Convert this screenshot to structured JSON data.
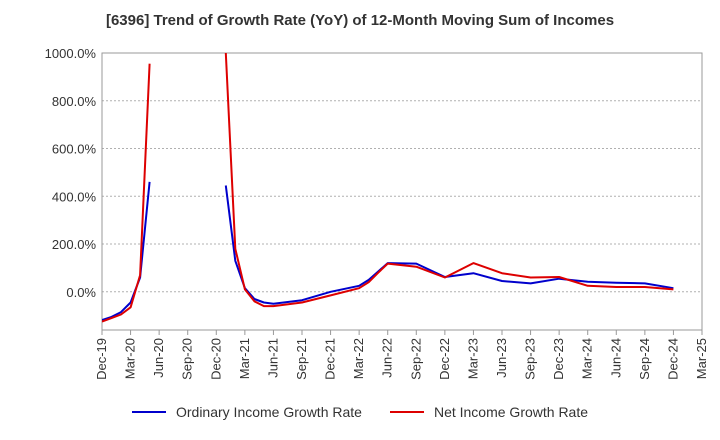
{
  "chart_data": {
    "type": "line",
    "title": "[6396]  Trend of Growth Rate (YoY) of 12-Month Moving Sum of Incomes",
    "xlabel": "",
    "ylabel": "",
    "x_ticks": [
      "Dec-19",
      "Mar-20",
      "Jun-20",
      "Sep-20",
      "Dec-20",
      "Mar-21",
      "Jun-21",
      "Sep-21",
      "Dec-21",
      "Mar-22",
      "Jun-22",
      "Sep-22",
      "Dec-22",
      "Mar-23",
      "Jun-23",
      "Sep-23",
      "Dec-23",
      "Mar-24",
      "Jun-24",
      "Sep-24",
      "Dec-24",
      "Mar-25"
    ],
    "y_ticks": [
      "0.0%",
      "200.0%",
      "400.0%",
      "600.0%",
      "800.0%",
      "1000.0%"
    ],
    "y_tick_values": [
      0,
      200,
      400,
      600,
      800,
      1000
    ],
    "ylim": [
      -160,
      1000
    ],
    "y_unit": "%",
    "grid": "horizontal dashed",
    "legend_position": "bottom",
    "series": [
      {
        "name": "Ordinary Income Growth Rate",
        "color": "#0000cc",
        "points": [
          [
            "Dec-19",
            -118
          ],
          [
            "Jan-20",
            -105
          ],
          [
            "Feb-20",
            -85
          ],
          [
            "Mar-20",
            -45
          ],
          [
            "Apr-20",
            60
          ],
          [
            "May-20",
            460
          ],
          null,
          [
            "Jan-21",
            445
          ],
          [
            "Feb-21",
            130
          ],
          [
            "Mar-21",
            15
          ],
          [
            "Apr-21",
            -30
          ],
          [
            "May-21",
            -45
          ],
          [
            "Jun-21",
            -50
          ],
          [
            "Sep-21",
            -35
          ],
          [
            "Dec-21",
            0
          ],
          [
            "Mar-22",
            25
          ],
          [
            "Apr-22",
            50
          ],
          [
            "May-22",
            85
          ],
          [
            "Jun-22",
            120
          ],
          [
            "Sep-22",
            118
          ],
          [
            "Dec-22",
            62
          ],
          [
            "Mar-23",
            78
          ],
          [
            "Jun-23",
            45
          ],
          [
            "Sep-23",
            35
          ],
          [
            "Dec-23",
            55
          ],
          [
            "Mar-24",
            42
          ],
          [
            "Jun-24",
            38
          ],
          [
            "Sep-24",
            35
          ],
          [
            "Dec-24",
            15
          ]
        ]
      },
      {
        "name": "Net Income Growth Rate",
        "color": "#dd0000",
        "points": [
          [
            "Dec-19",
            -125
          ],
          [
            "Jan-20",
            -110
          ],
          [
            "Feb-20",
            -95
          ],
          [
            "Mar-20",
            -65
          ],
          [
            "Apr-20",
            70
          ],
          [
            "May-20",
            955
          ],
          null,
          [
            "Jan-21",
            1000
          ],
          [
            "Feb-21",
            180
          ],
          [
            "Mar-21",
            10
          ],
          [
            "Apr-21",
            -40
          ],
          [
            "May-21",
            -60
          ],
          [
            "Jun-21",
            -60
          ],
          [
            "Sep-21",
            -45
          ],
          [
            "Dec-21",
            -15
          ],
          [
            "Mar-22",
            15
          ],
          [
            "Apr-22",
            40
          ],
          [
            "May-22",
            80
          ],
          [
            "Jun-22",
            118
          ],
          [
            "Sep-22",
            105
          ],
          [
            "Dec-22",
            60
          ],
          [
            "Mar-23",
            120
          ],
          [
            "Jun-23",
            78
          ],
          [
            "Sep-23",
            60
          ],
          [
            "Dec-23",
            62
          ],
          [
            "Mar-24",
            25
          ],
          [
            "Jun-24",
            20
          ],
          [
            "Sep-24",
            20
          ],
          [
            "Dec-24",
            10
          ]
        ]
      }
    ]
  }
}
